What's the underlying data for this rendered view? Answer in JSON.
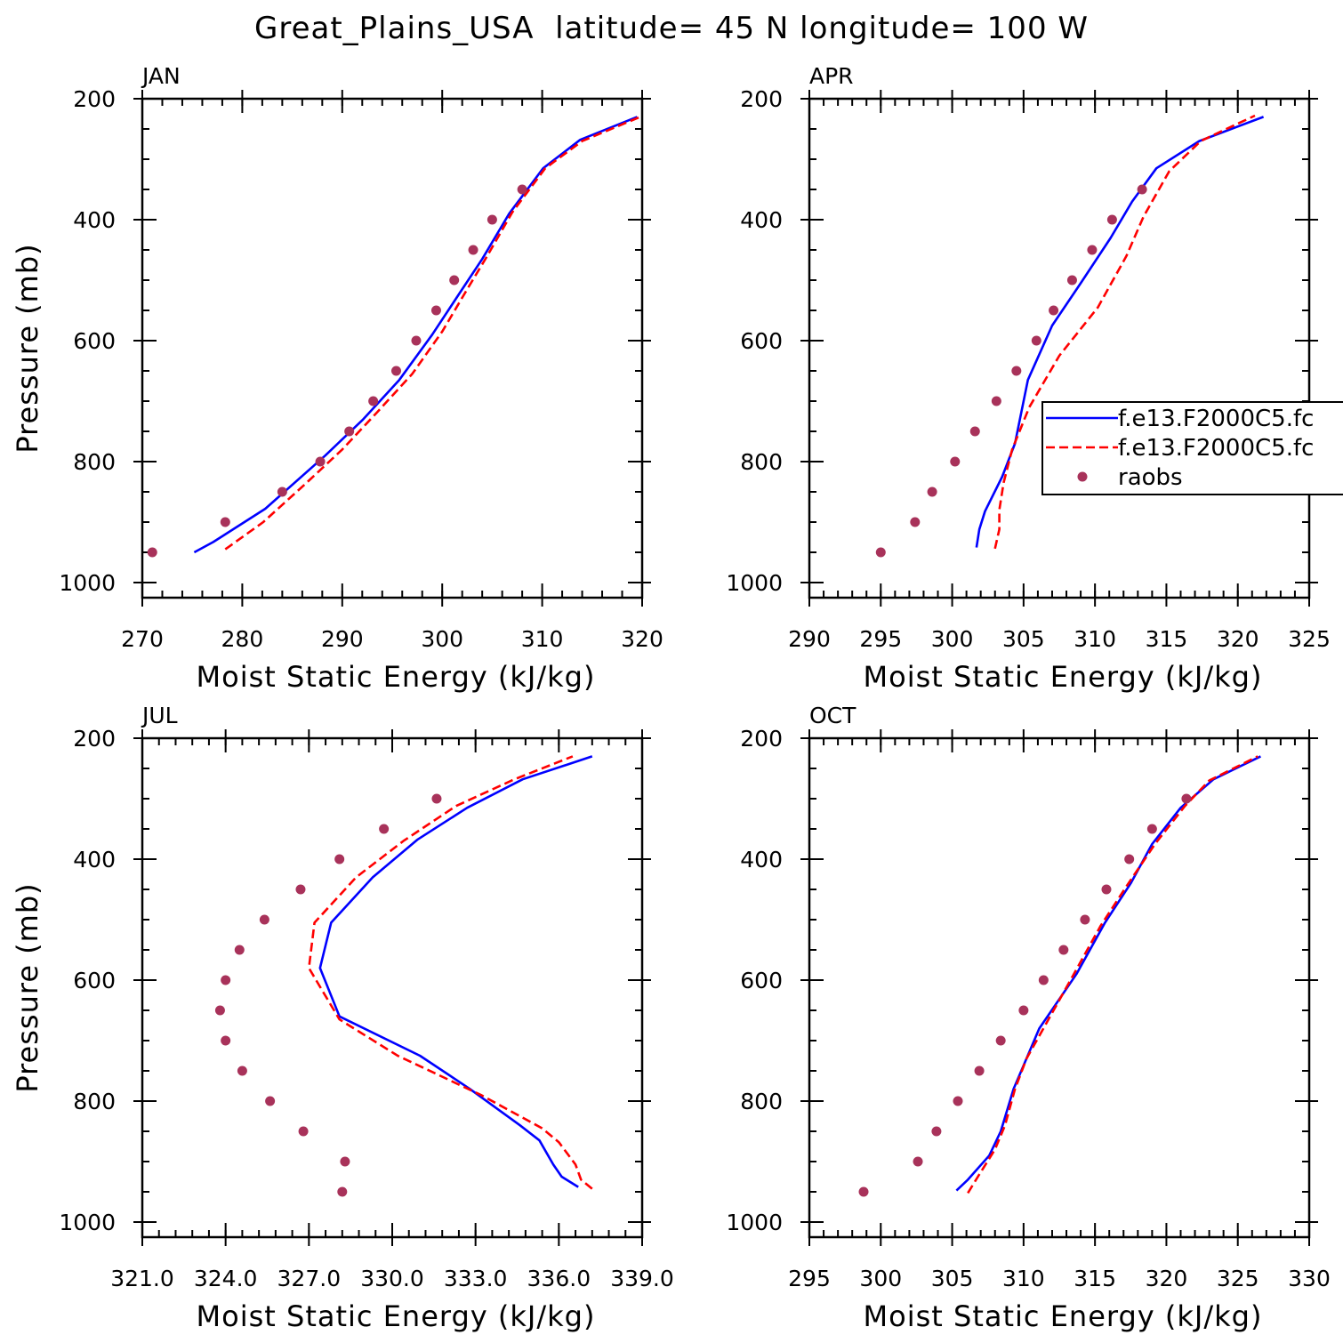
{
  "figure": {
    "title": "Great_Plains_USA  latitude= 45 N longitude= 100 W"
  },
  "legend": {
    "entries": [
      {
        "label": "f.e13.F2000C5.fc",
        "style": "solid",
        "color": "#0000ff"
      },
      {
        "label": "f.e13.F2000C5.fc",
        "style": "dashed",
        "color": "#ff0000"
      },
      {
        "label": "raobs",
        "style": "marker",
        "color": "#a8325a"
      }
    ]
  },
  "colors": {
    "series_1": "#0000ff",
    "series_2": "#ff0000",
    "raobs": "#a8325a",
    "axes": "#000000"
  },
  "chart_data": [
    {
      "type": "line",
      "title": "JAN",
      "xlabel": "Moist Static Energy (kJ/kg)",
      "ylabel": "Pressure (mb)",
      "xlim": [
        270,
        320
      ],
      "ylim": [
        1000,
        200
      ],
      "xticks": [
        270,
        280,
        290,
        300,
        310,
        320
      ],
      "xtick_labels": [
        "270",
        "280",
        "290",
        "300",
        "310",
        "320"
      ],
      "yticks": [
        200,
        400,
        600,
        800,
        1000
      ],
      "ytick_labels": [
        "200",
        "400",
        "600",
        "800",
        "1000"
      ],
      "series": [
        {
          "name": "f.e13.F2000C5.fc",
          "style": "solid",
          "x": [
            275.2,
            277.1,
            282.3,
            288.3,
            292.1,
            295.7,
            299.0,
            301.8,
            304.0,
            306.7,
            310.1,
            313.8,
            319.5
          ],
          "y": [
            950,
            933,
            878,
            790,
            730,
            665,
            590,
            520,
            465,
            390,
            315,
            268,
            230
          ]
        },
        {
          "name": "f.e13.F2000C5.fc",
          "style": "dashed",
          "x": [
            278.3,
            282.1,
            286.1,
            290.0,
            293.4,
            297.0,
            300.0,
            302.5,
            304.5,
            307.0,
            310.3,
            314.0,
            319.8
          ],
          "y": [
            945,
            900,
            840,
            780,
            720,
            655,
            585,
            515,
            460,
            388,
            315,
            270,
            230
          ]
        },
        {
          "name": "raobs",
          "style": "marker",
          "x": [
            271.0,
            278.3,
            284.0,
            287.8,
            290.7,
            293.1,
            295.4,
            297.4,
            299.4,
            301.2,
            303.1,
            305.0,
            308.0
          ],
          "y": [
            950,
            900,
            850,
            800,
            750,
            700,
            650,
            600,
            550,
            500,
            450,
            400,
            350
          ]
        }
      ]
    },
    {
      "type": "line",
      "title": "APR",
      "xlabel": "Moist Static Energy (kJ/kg)",
      "ylabel": "",
      "xlim": [
        290,
        325
      ],
      "ylim": [
        1000,
        200
      ],
      "xticks": [
        290,
        295,
        300,
        305,
        310,
        315,
        320,
        325
      ],
      "xtick_labels": [
        "290",
        "295",
        "300",
        "305",
        "310",
        "315",
        "320",
        "325"
      ],
      "yticks": [
        200,
        400,
        600,
        800,
        1000
      ],
      "ytick_labels": [
        "200",
        "400",
        "600",
        "800",
        "1000"
      ],
      "series": [
        {
          "name": "f.e13.F2000C5.fc",
          "style": "solid",
          "x": [
            301.7,
            301.9,
            302.3,
            303.5,
            304.4,
            305.3,
            307.0,
            309.0,
            311.1,
            312.6,
            314.3,
            317.3,
            321.8
          ],
          "y": [
            942,
            912,
            882,
            825,
            770,
            665,
            575,
            505,
            430,
            370,
            315,
            270,
            230
          ]
        },
        {
          "name": "f.e13.F2000C5.fc",
          "style": "dashed",
          "x": [
            303.0,
            303.3,
            303.3,
            303.6,
            304.2,
            305.4,
            307.5,
            310.2,
            312.2,
            313.4,
            315.2,
            317.4,
            321.2
          ],
          "y": [
            944,
            912,
            880,
            835,
            780,
            710,
            625,
            545,
            460,
            395,
            320,
            270,
            228
          ]
        },
        {
          "name": "raobs",
          "style": "marker",
          "x": [
            295.0,
            297.4,
            298.6,
            300.2,
            301.6,
            303.1,
            304.5,
            305.9,
            307.1,
            308.4,
            309.8,
            311.2,
            313.3
          ],
          "y": [
            950,
            900,
            850,
            800,
            750,
            700,
            650,
            600,
            550,
            500,
            450,
            400,
            350
          ]
        }
      ]
    },
    {
      "type": "line",
      "title": "JUL",
      "xlabel": "Moist Static Energy (kJ/kg)",
      "ylabel": "Pressure (mb)",
      "xlim": [
        321.0,
        339.0
      ],
      "ylim": [
        1000,
        200
      ],
      "xticks": [
        321.0,
        324.0,
        327.0,
        330.0,
        333.0,
        336.0,
        339.0
      ],
      "xtick_labels": [
        "321.0",
        "324.0",
        "327.0",
        "330.0",
        "333.0",
        "336.0",
        "339.0"
      ],
      "yticks": [
        200,
        400,
        600,
        800,
        1000
      ],
      "ytick_labels": [
        "200",
        "400",
        "600",
        "800",
        "1000"
      ],
      "series": [
        {
          "name": "f.e13.F2000C5.fc",
          "style": "solid",
          "x": [
            336.7,
            336.1,
            335.8,
            335.3,
            334.6,
            332.8,
            331.0,
            328.1,
            327.4,
            327.8,
            329.3,
            330.9,
            332.7,
            334.7,
            337.2
          ],
          "y": [
            942,
            925,
            905,
            865,
            840,
            780,
            725,
            660,
            580,
            505,
            430,
            368,
            315,
            268,
            230
          ]
        },
        {
          "name": "f.e13.F2000C5.fc",
          "style": "dashed",
          "x": [
            337.2,
            336.8,
            336.6,
            336.0,
            335.4,
            333.2,
            330.2,
            328.1,
            327.0,
            327.2,
            328.7,
            330.4,
            332.3,
            334.4,
            336.5
          ],
          "y": [
            945,
            930,
            905,
            868,
            845,
            790,
            725,
            665,
            580,
            505,
            430,
            370,
            312,
            268,
            230
          ]
        },
        {
          "name": "raobs",
          "style": "marker",
          "x": [
            328.2,
            328.3,
            326.8,
            325.6,
            324.6,
            324.0,
            323.8,
            324.0,
            324.5,
            325.4,
            326.7,
            328.1,
            329.7,
            331.6
          ],
          "y": [
            950,
            900,
            850,
            800,
            750,
            700,
            650,
            600,
            550,
            500,
            450,
            400,
            350,
            300
          ]
        }
      ]
    },
    {
      "type": "line",
      "title": "OCT",
      "xlabel": "Moist Static Energy (kJ/kg)",
      "ylabel": "",
      "xlim": [
        295,
        330
      ],
      "ylim": [
        1000,
        200
      ],
      "xticks": [
        295,
        300,
        305,
        310,
        315,
        320,
        325,
        330
      ],
      "xtick_labels": [
        "295",
        "300",
        "305",
        "310",
        "315",
        "320",
        "325",
        "330"
      ],
      "yticks": [
        200,
        400,
        600,
        800,
        1000
      ],
      "ytick_labels": [
        "200",
        "400",
        "600",
        "800",
        "1000"
      ],
      "series": [
        {
          "name": "f.e13.F2000C5.fc",
          "style": "solid",
          "x": [
            305.3,
            306.1,
            307.6,
            308.4,
            309.3,
            311.1,
            313.7,
            315.7,
            317.5,
            319.0,
            321.0,
            323.3,
            326.6
          ],
          "y": [
            948,
            930,
            890,
            850,
            780,
            680,
            590,
            505,
            440,
            375,
            315,
            268,
            230
          ]
        },
        {
          "name": "f.e13.F2000C5.fc",
          "style": "dashed",
          "x": [
            306.1,
            306.8,
            308.0,
            308.7,
            309.4,
            310.2,
            313.4,
            315.4,
            317.2,
            319.2,
            321.3,
            323.0,
            326.4
          ],
          "y": [
            952,
            925,
            880,
            840,
            780,
            730,
            595,
            510,
            445,
            375,
            312,
            270,
            230
          ]
        },
        {
          "name": "raobs",
          "style": "marker",
          "x": [
            298.8,
            302.6,
            303.9,
            305.4,
            306.9,
            308.4,
            310.0,
            311.4,
            312.8,
            314.3,
            315.8,
            317.4,
            319.0,
            321.4
          ],
          "y": [
            950,
            900,
            850,
            800,
            750,
            700,
            650,
            600,
            550,
            500,
            450,
            400,
            350,
            300
          ]
        }
      ]
    }
  ]
}
